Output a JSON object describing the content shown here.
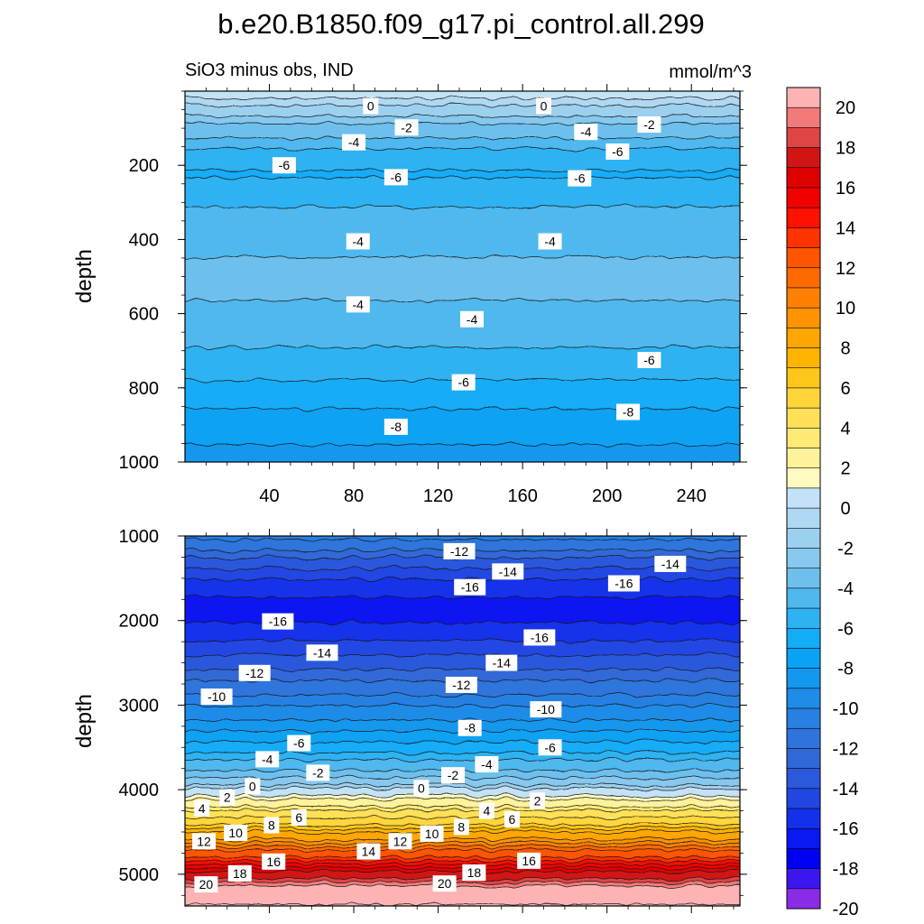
{
  "chart_data": [
    {
      "type": "heatmap",
      "title": "b.e20.B1850.f09_g17.pi_control.all.299",
      "left_label": "SiO3 minus obs, IND",
      "right_label": "mmol/m^3",
      "ylabel": "depth",
      "x_ticks": [
        40,
        80,
        120,
        160,
        200,
        240
      ],
      "xlim": [
        0,
        263
      ],
      "ylim": [
        1000,
        0
      ],
      "y_ticks": [
        200,
        400,
        600,
        800,
        1000
      ],
      "contour_interval": 1,
      "rows": [
        {
          "depth": 0,
          "value": 0.8
        },
        {
          "depth": 15,
          "value": 0.3
        },
        {
          "depth": 35,
          "value": -0.7
        },
        {
          "depth": 60,
          "value": -1.8
        },
        {
          "depth": 85,
          "value": -2.8
        },
        {
          "depth": 110,
          "value": -3.6
        },
        {
          "depth": 140,
          "value": -4.6
        },
        {
          "depth": 180,
          "value": -5.5
        },
        {
          "depth": 220,
          "value": -6.1
        },
        {
          "depth": 260,
          "value": -5.8
        },
        {
          "depth": 300,
          "value": -5.1
        },
        {
          "depth": 350,
          "value": -4.6
        },
        {
          "depth": 420,
          "value": -4.2
        },
        {
          "depth": 480,
          "value": -3.8
        },
        {
          "depth": 540,
          "value": -3.9
        },
        {
          "depth": 600,
          "value": -4.2
        },
        {
          "depth": 650,
          "value": -4.6
        },
        {
          "depth": 700,
          "value": -5.1
        },
        {
          "depth": 760,
          "value": -5.8
        },
        {
          "depth": 820,
          "value": -6.5
        },
        {
          "depth": 880,
          "value": -7.3
        },
        {
          "depth": 940,
          "value": -7.9
        },
        {
          "depth": 1000,
          "value": -8.4
        }
      ],
      "contour_labels": [
        {
          "text": "0",
          "x": 88,
          "depth": 40
        },
        {
          "text": "0",
          "x": 170,
          "depth": 40
        },
        {
          "text": "-2",
          "x": 105,
          "depth": 98
        },
        {
          "text": "-2",
          "x": 220,
          "depth": 90
        },
        {
          "text": "-4",
          "x": 80,
          "depth": 138
        },
        {
          "text": "-4",
          "x": 190,
          "depth": 110
        },
        {
          "text": "-6",
          "x": 47,
          "depth": 200
        },
        {
          "text": "-6",
          "x": 100,
          "depth": 232
        },
        {
          "text": "-6",
          "x": 205,
          "depth": 163
        },
        {
          "text": "-6",
          "x": 187,
          "depth": 235
        },
        {
          "text": "-4",
          "x": 82,
          "depth": 405
        },
        {
          "text": "-4",
          "x": 173,
          "depth": 405
        },
        {
          "text": "-4",
          "x": 82,
          "depth": 575
        },
        {
          "text": "-4",
          "x": 136,
          "depth": 615
        },
        {
          "text": "-6",
          "x": 220,
          "depth": 725
        },
        {
          "text": "-6",
          "x": 132,
          "depth": 785
        },
        {
          "text": "-8",
          "x": 210,
          "depth": 865
        },
        {
          "text": "-8",
          "x": 100,
          "depth": 905
        }
      ]
    },
    {
      "type": "heatmap",
      "ylabel": "depth",
      "ylim": [
        5375,
        1000
      ],
      "y_ticks": [
        1000,
        2000,
        3000,
        4000,
        5000
      ],
      "contour_interval": 1,
      "rows": [
        {
          "depth": 1000,
          "value": -10.5
        },
        {
          "depth": 1200,
          "value": -12.5
        },
        {
          "depth": 1400,
          "value": -14.2
        },
        {
          "depth": 1600,
          "value": -15.5
        },
        {
          "depth": 1800,
          "value": -16.3
        },
        {
          "depth": 2000,
          "value": -16.1
        },
        {
          "depth": 2200,
          "value": -15.2
        },
        {
          "depth": 2400,
          "value": -14.0
        },
        {
          "depth": 2600,
          "value": -12.8
        },
        {
          "depth": 2800,
          "value": -11.5
        },
        {
          "depth": 3000,
          "value": -10.2
        },
        {
          "depth": 3200,
          "value": -8.7
        },
        {
          "depth": 3400,
          "value": -7.2
        },
        {
          "depth": 3600,
          "value": -5.5
        },
        {
          "depth": 3800,
          "value": -3.7
        },
        {
          "depth": 3950,
          "value": -1.8
        },
        {
          "depth": 4000,
          "value": 0.2
        },
        {
          "depth": 4150,
          "value": 2.5
        },
        {
          "depth": 4300,
          "value": 4.5
        },
        {
          "depth": 4450,
          "value": 6.8
        },
        {
          "depth": 4600,
          "value": 9.5
        },
        {
          "depth": 4750,
          "value": 12.3
        },
        {
          "depth": 4900,
          "value": 15.2
        },
        {
          "depth": 5050,
          "value": 18.2
        },
        {
          "depth": 5150,
          "value": 20.5
        },
        {
          "depth": 5375,
          "value": 21
        }
      ],
      "contour_labels": [
        {
          "text": "-12",
          "x": 130,
          "depth": 1180
        },
        {
          "text": "-14",
          "x": 153,
          "depth": 1420
        },
        {
          "text": "-14",
          "x": 230,
          "depth": 1330
        },
        {
          "text": "-16",
          "x": 135,
          "depth": 1605
        },
        {
          "text": "-16",
          "x": 208,
          "depth": 1560
        },
        {
          "text": "-16",
          "x": 44,
          "depth": 2010
        },
        {
          "text": "-16",
          "x": 168,
          "depth": 2200
        },
        {
          "text": "-14",
          "x": 65,
          "depth": 2380
        },
        {
          "text": "-14",
          "x": 150,
          "depth": 2500
        },
        {
          "text": "-12",
          "x": 33,
          "depth": 2620
        },
        {
          "text": "-12",
          "x": 131,
          "depth": 2760
        },
        {
          "text": "-10",
          "x": 15,
          "depth": 2900
        },
        {
          "text": "-10",
          "x": 171,
          "depth": 3050
        },
        {
          "text": "-8",
          "x": 135,
          "depth": 3270
        },
        {
          "text": "-6",
          "x": 54,
          "depth": 3450
        },
        {
          "text": "-6",
          "x": 173,
          "depth": 3500
        },
        {
          "text": "-4",
          "x": 39,
          "depth": 3640
        },
        {
          "text": "-4",
          "x": 143,
          "depth": 3700
        },
        {
          "text": "-2",
          "x": 63,
          "depth": 3800
        },
        {
          "text": "-2",
          "x": 127,
          "depth": 3830
        },
        {
          "text": "0",
          "x": 32,
          "depth": 3960
        },
        {
          "text": "0",
          "x": 112,
          "depth": 3980
        },
        {
          "text": "2",
          "x": 20,
          "depth": 4090
        },
        {
          "text": "2",
          "x": 167,
          "depth": 4130
        },
        {
          "text": "4",
          "x": 8,
          "depth": 4220
        },
        {
          "text": "4",
          "x": 143,
          "depth": 4250
        },
        {
          "text": "6",
          "x": 54,
          "depth": 4330
        },
        {
          "text": "6",
          "x": 155,
          "depth": 4350
        },
        {
          "text": "8",
          "x": 41,
          "depth": 4420
        },
        {
          "text": "8",
          "x": 131,
          "depth": 4440
        },
        {
          "text": "10",
          "x": 24,
          "depth": 4510
        },
        {
          "text": "10",
          "x": 117,
          "depth": 4520
        },
        {
          "text": "12",
          "x": 9,
          "depth": 4610
        },
        {
          "text": "12",
          "x": 102,
          "depth": 4610
        },
        {
          "text": "14",
          "x": 87,
          "depth": 4730
        },
        {
          "text": "16",
          "x": 42,
          "depth": 4850
        },
        {
          "text": "16",
          "x": 163,
          "depth": 4840
        },
        {
          "text": "18",
          "x": 26,
          "depth": 4990
        },
        {
          "text": "18",
          "x": 137,
          "depth": 4980
        },
        {
          "text": "20",
          "x": 10,
          "depth": 5120
        },
        {
          "text": "20",
          "x": 123,
          "depth": 5110
        }
      ]
    }
  ],
  "colorbar": {
    "labels": [
      "20",
      "18",
      "16",
      "14",
      "12",
      "10",
      "8",
      "6",
      "4",
      "2",
      "0",
      "-2",
      "-4",
      "-6",
      "-8",
      "-10",
      "-12",
      "-14",
      "-16",
      "-18",
      "-20"
    ],
    "colors": [
      "#FDB3B3",
      "#F27A7A",
      "#E04545",
      "#D11515",
      "#E10000",
      "#F20000",
      "#FF1100",
      "#FF3300",
      "#FF5500",
      "#FF6A00",
      "#FF8000",
      "#FF9300",
      "#FFA600",
      "#FFB500",
      "#FFC61A",
      "#FFD53A",
      "#FFE057",
      "#FFEA75",
      "#FFF29A",
      "#FFFAC0",
      "#C4E2F7",
      "#AFD8F2",
      "#9CD0EF",
      "#86C8EE",
      "#6DC0EE",
      "#4FB8EE",
      "#2FB2F2",
      "#12ACF7",
      "#0AA2F4",
      "#1497EE",
      "#1E8CE8",
      "#2780E2",
      "#2E74DC",
      "#3068D8",
      "#2C58DC",
      "#2246E2",
      "#1530EA",
      "#0A18F2",
      "#0000F4",
      "#3C16EE",
      "#8A2BE8"
    ]
  }
}
